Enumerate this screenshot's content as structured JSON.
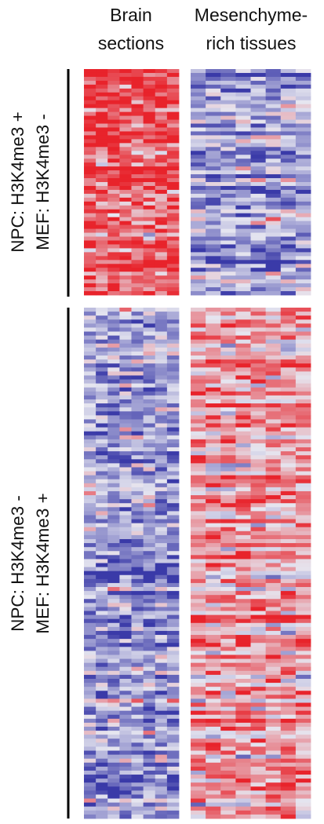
{
  "chart_data": {
    "type": "heatmap",
    "columns": [
      {
        "line1": "Brain",
        "line2": "sections"
      },
      {
        "line1": "Mesenchyme-",
        "line2": "rich tissues"
      }
    ],
    "row_groups": [
      {
        "line1": "NPC: H3K4me3 +",
        "line2": "MEF: H3K4me3 -",
        "n_rows": 58,
        "brain_bias": 0.75,
        "mesen_bias": -0.45
      },
      {
        "line1": "NPC: H3K4me3 -",
        "line2": "MEF: H3K4me3 +",
        "n_rows": 128,
        "brain_bias": -0.4,
        "mesen_bias": 0.4
      }
    ],
    "samples_per_column": 8,
    "value_range": [
      -1,
      1
    ],
    "colors": {
      "low": "#3a3aa8",
      "mid": "#e6e6f0",
      "high": "#e8232b"
    }
  }
}
